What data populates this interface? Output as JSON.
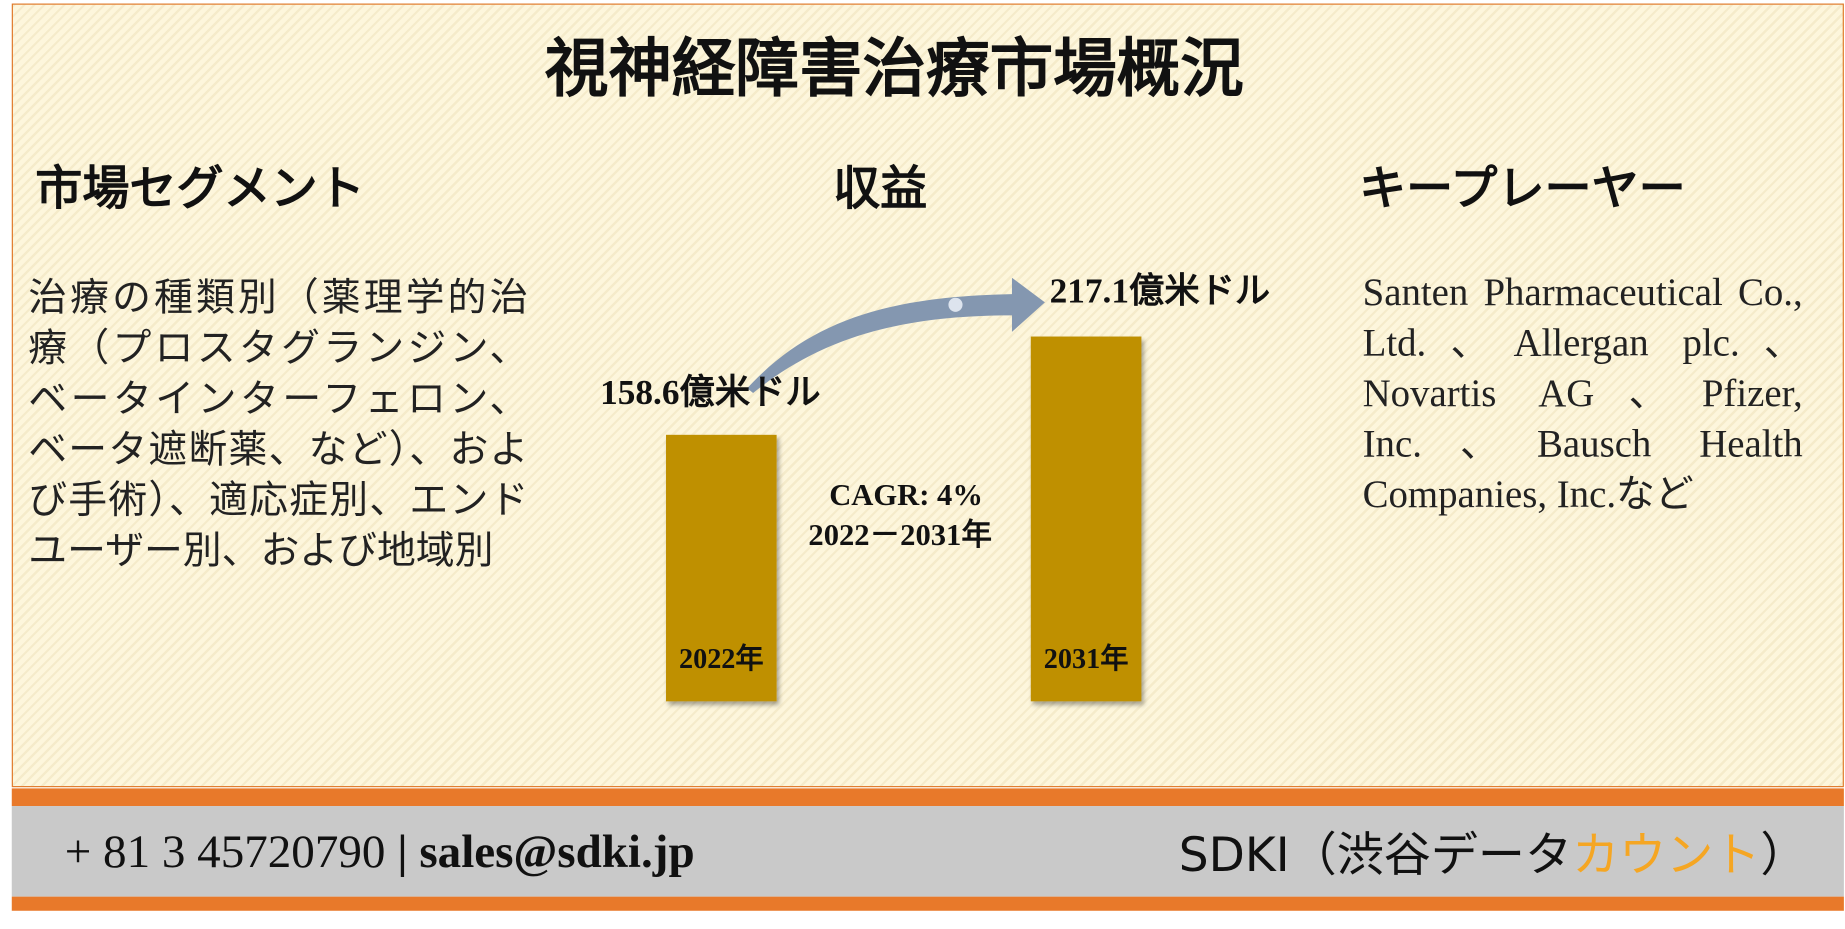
{
  "title": "視神経障害治療市場概況",
  "segments": {
    "heading": "市場セグメント",
    "text": "治療の種類別（薬理学的治療（プロスタグランジン、ベータインターフェロン、ベータ遮断薬、など）、および手術）、適応症別、エンドユーザー別、および地域別"
  },
  "revenue": {
    "heading": "収益"
  },
  "chart_data": {
    "type": "bar",
    "categories": [
      "2022年",
      "2031年"
    ],
    "values": [
      158.6,
      217.1
    ],
    "value_labels": [
      "158.6億米ドル",
      "217.1億米ドル"
    ],
    "color": "#bf9000",
    "cagr": "CAGR: 4%",
    "period": "2022－2031年"
  },
  "players": {
    "heading": "キープレーヤー",
    "text": "Santen Pharmaceutical Co., Ltd.、Allergan plc.、Novartis AG、Pfizer, Inc.、Bausch Health Companies, Inc.など"
  },
  "footer": {
    "phone": "+ 81 3 45720790",
    "separator": "|",
    "email": "sales@sdki.jp",
    "brand": "SDKI（渋谷データ",
    "brand_accent": "カウント",
    "brand_end": "）"
  }
}
